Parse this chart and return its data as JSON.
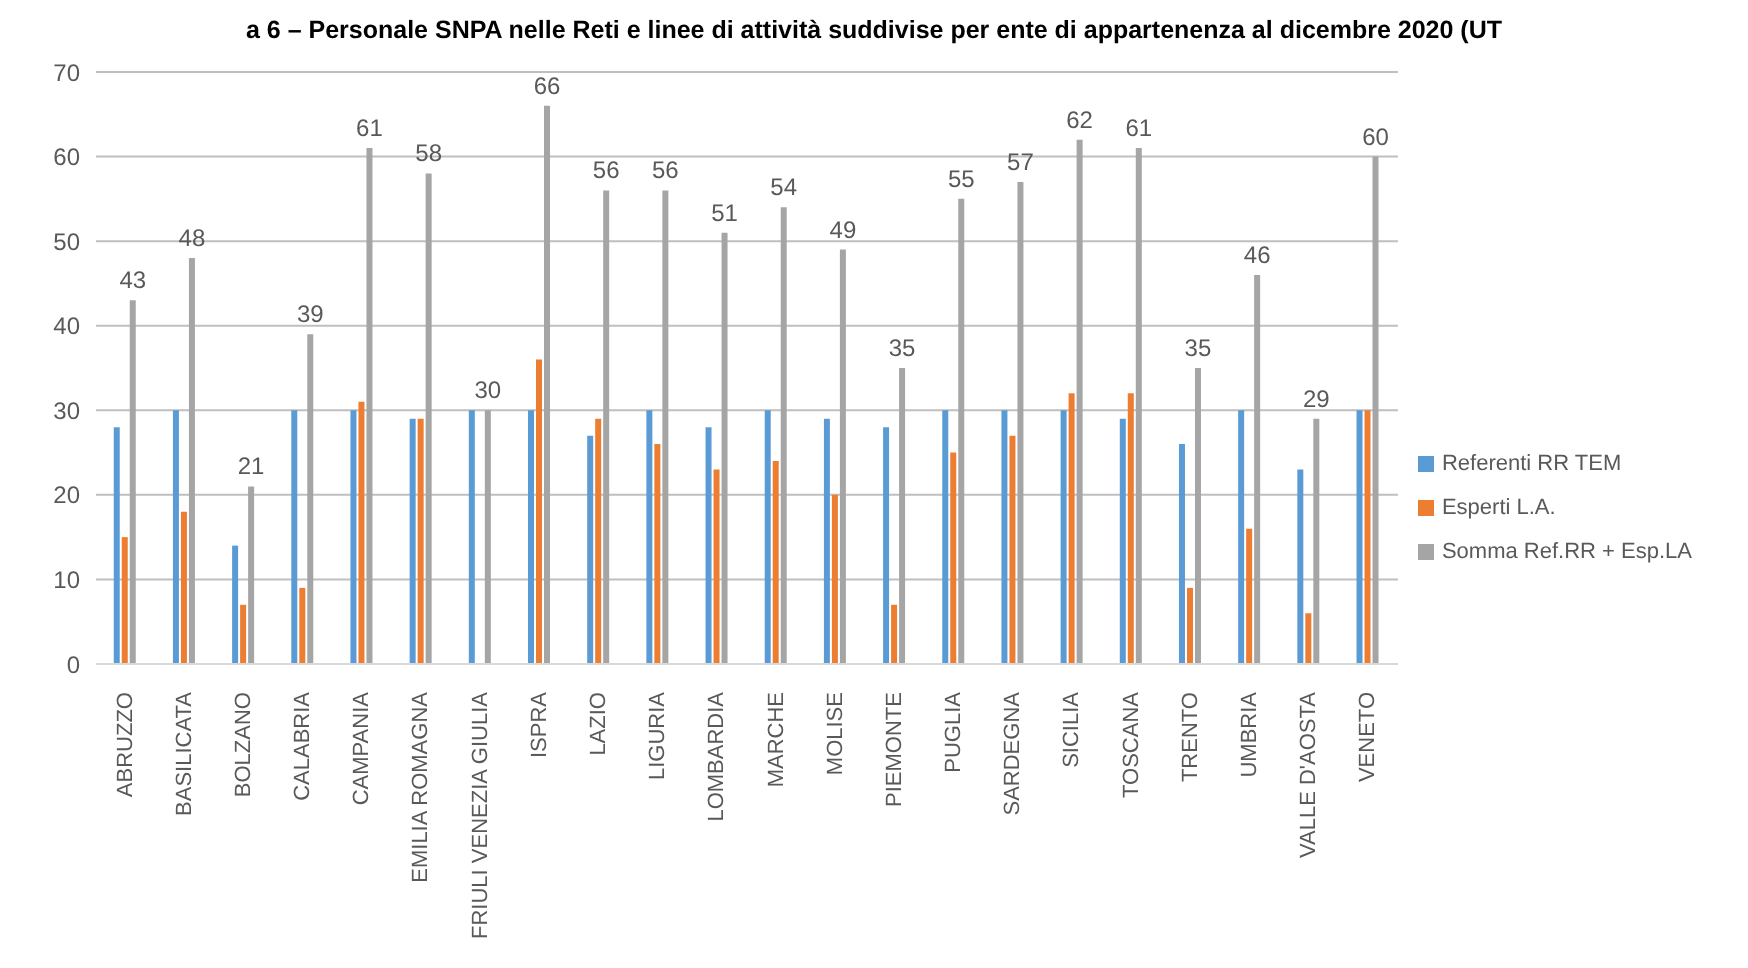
{
  "chart_data": {
    "type": "bar",
    "title": "a 6 – Personale SNPA nelle Reti e linee di attività suddivise per ente di appartenenza al dicembre 2020 (UT",
    "categories": [
      "ABRUZZO",
      "BASILICATA",
      "BOLZANO",
      "CALABRIA",
      "CAMPANIA",
      "EMILIA ROMAGNA",
      "FRIULI VENEZIA GIULIA",
      "ISPRA",
      "LAZIO",
      "LIGURIA",
      "LOMBARDIA",
      "MARCHE",
      "MOLISE",
      "PIEMONTE",
      "PUGLIA",
      "SARDEGNA",
      "SICILIA",
      "TOSCANA",
      "TRENTO",
      "UMBRIA",
      "VALLE D'AOSTA",
      "VENETO"
    ],
    "series": [
      {
        "name": "Referenti RR TEM",
        "color": "#5b9bd5",
        "values": [
          28,
          30,
          14,
          30,
          30,
          29,
          30,
          30,
          27,
          30,
          28,
          30,
          29,
          28,
          30,
          30,
          30,
          29,
          26,
          30,
          23,
          30
        ]
      },
      {
        "name": "Esperti L.A.",
        "color": "#ed7d31",
        "values": [
          15,
          18,
          7,
          9,
          31,
          29,
          0,
          36,
          29,
          26,
          23,
          24,
          20,
          7,
          25,
          27,
          32,
          32,
          9,
          16,
          6,
          30
        ]
      },
      {
        "name": "Somma Ref.RR + Esp.LA",
        "color": "#a5a5a5",
        "values": [
          43,
          48,
          21,
          39,
          61,
          58,
          30,
          66,
          56,
          56,
          51,
          54,
          49,
          35,
          55,
          57,
          62,
          61,
          35,
          46,
          29,
          60
        ],
        "value_labels": [
          "43",
          "48",
          "21",
          "39",
          "61",
          "58",
          "30",
          "66",
          "56",
          "56",
          "51",
          "54",
          "49",
          "35",
          "55",
          "57",
          "62",
          "61",
          "35",
          "46",
          "29",
          "60"
        ]
      }
    ],
    "ylim": [
      0,
      70
    ],
    "yticks": [
      0,
      10,
      20,
      30,
      40,
      50,
      60,
      70
    ],
    "grid": "y",
    "legend": "right"
  }
}
